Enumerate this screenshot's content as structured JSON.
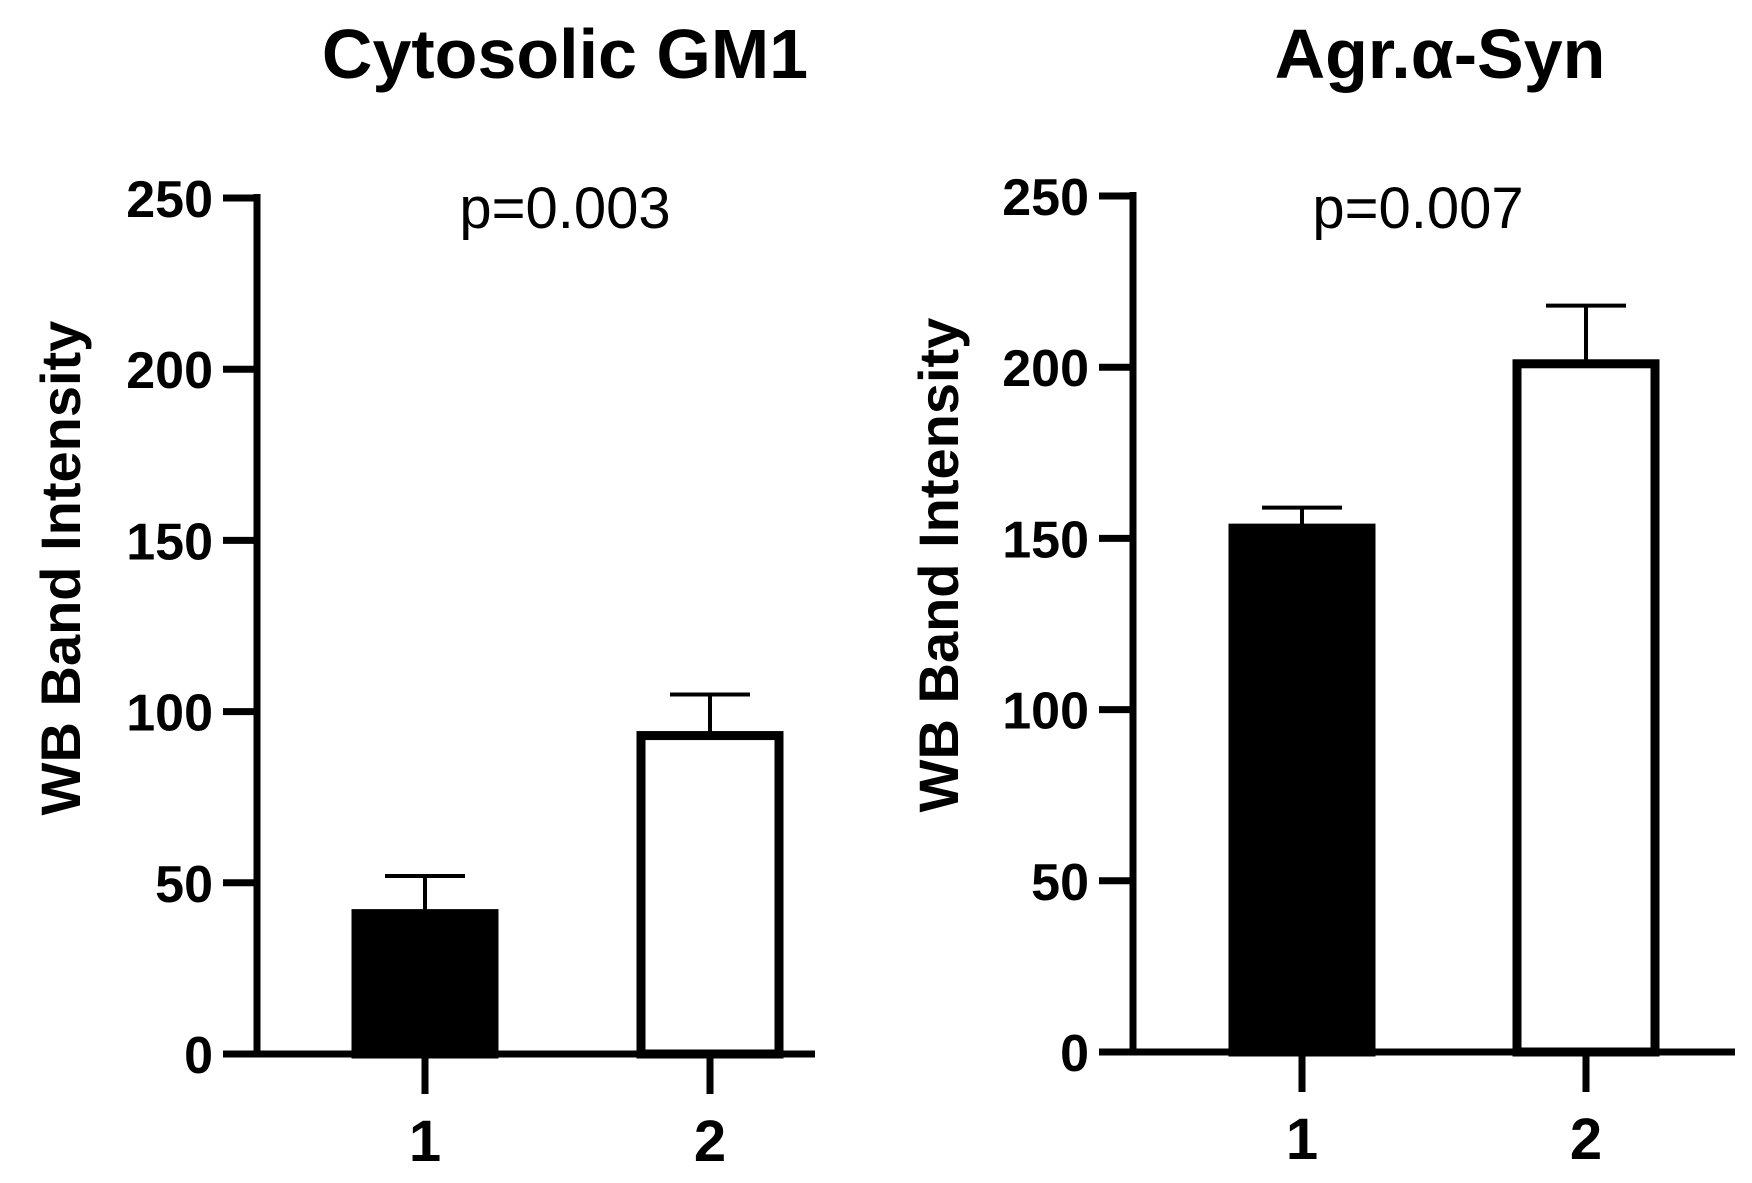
{
  "chart_data": [
    {
      "type": "bar",
      "title": "Cytosolic GM1",
      "ylabel": "WB Band Intensity",
      "xlabel": "",
      "categories": [
        "1",
        "2"
      ],
      "values": [
        41,
        93
      ],
      "error": [
        11,
        12
      ],
      "bar_fills": [
        "#000000",
        "#ffffff"
      ],
      "ylim": [
        0,
        250
      ],
      "yticks": [
        "0",
        "50",
        "100",
        "150",
        "200",
        "250"
      ],
      "annotation": "p=0.003",
      "grid": false,
      "legend": "none"
    },
    {
      "type": "bar",
      "title": "Agr.α-Syn",
      "ylabel": "WB Band Intensity",
      "xlabel": "",
      "categories": [
        "1",
        "2"
      ],
      "values": [
        153,
        201
      ],
      "error": [
        6,
        17
      ],
      "bar_fills": [
        "#000000",
        "#ffffff"
      ],
      "ylim": [
        0,
        250
      ],
      "yticks": [
        "0",
        "50",
        "100",
        "150",
        "200",
        "250"
      ],
      "annotation": "p=0.007",
      "grid": false,
      "legend": "none"
    }
  ]
}
